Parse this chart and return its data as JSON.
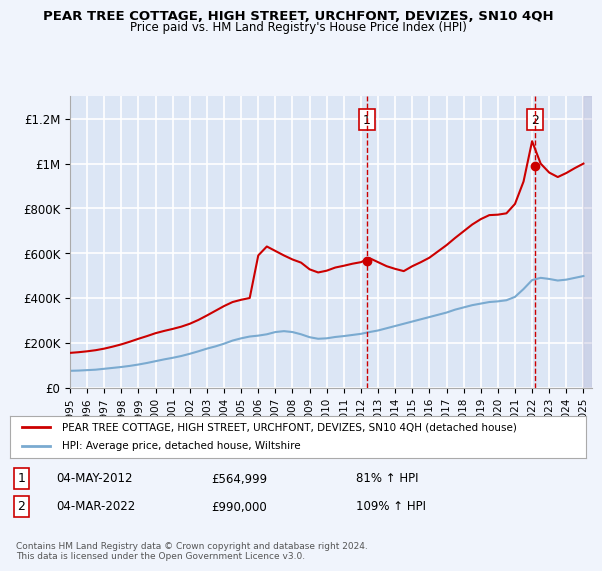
{
  "title": "PEAR TREE COTTAGE, HIGH STREET, URCHFONT, DEVIZES, SN10 4QH",
  "subtitle": "Price paid vs. HM Land Registry's House Price Index (HPI)",
  "bg_color": "#e8eef8",
  "plot_bg_color": "#dce6f5",
  "grid_color": "#ffffff",
  "hpi_color": "#7aaad0",
  "house_color": "#cc0000",
  "marker_color": "#cc0000",
  "dashed_color": "#cc0000",
  "ylim": [
    0,
    1300000
  ],
  "yticks": [
    0,
    200000,
    400000,
    600000,
    800000,
    1000000,
    1200000
  ],
  "ytick_labels": [
    "£0",
    "£200K",
    "£400K",
    "£600K",
    "£800K",
    "£1M",
    "£1.2M"
  ],
  "legend_house_label": "PEAR TREE COTTAGE, HIGH STREET, URCHFONT, DEVIZES, SN10 4QH (detached house)",
  "legend_hpi_label": "HPI: Average price, detached house, Wiltshire",
  "transaction1_date": "04-MAY-2012",
  "transaction1_price": "£564,999",
  "transaction1_hpi": "81% ↑ HPI",
  "transaction1_x": 2012.35,
  "transaction1_y": 564999,
  "transaction2_date": "04-MAR-2022",
  "transaction2_price": "£990,000",
  "transaction2_hpi": "109% ↑ HPI",
  "transaction2_x": 2022.17,
  "transaction2_y": 990000,
  "footer": "Contains HM Land Registry data © Crown copyright and database right 2024.\nThis data is licensed under the Open Government Licence v3.0.",
  "xmin": 1995,
  "xmax": 2025.5,
  "hpi_years": [
    1995,
    1995.5,
    1996,
    1996.5,
    1997,
    1997.5,
    1998,
    1998.5,
    1999,
    1999.5,
    2000,
    2000.5,
    2001,
    2001.5,
    2002,
    2002.5,
    2003,
    2003.5,
    2004,
    2004.5,
    2005,
    2005.5,
    2006,
    2006.5,
    2007,
    2007.5,
    2008,
    2008.5,
    2009,
    2009.5,
    2010,
    2010.5,
    2011,
    2011.5,
    2012,
    2012.5,
    2013,
    2013.5,
    2014,
    2014.5,
    2015,
    2015.5,
    2016,
    2016.5,
    2017,
    2017.5,
    2018,
    2018.5,
    2019,
    2019.5,
    2020,
    2020.5,
    2021,
    2021.5,
    2022,
    2022.5,
    2023,
    2023.5,
    2024,
    2024.5,
    2025
  ],
  "hpi_values": [
    75000,
    76000,
    78000,
    80000,
    84000,
    88000,
    92000,
    97000,
    103000,
    110000,
    118000,
    126000,
    133000,
    141000,
    151000,
    162000,
    174000,
    184000,
    196000,
    210000,
    220000,
    228000,
    232000,
    238000,
    248000,
    252000,
    248000,
    238000,
    225000,
    218000,
    220000,
    226000,
    230000,
    235000,
    240000,
    248000,
    255000,
    265000,
    275000,
    285000,
    295000,
    305000,
    315000,
    325000,
    335000,
    348000,
    358000,
    368000,
    375000,
    382000,
    385000,
    390000,
    405000,
    440000,
    480000,
    490000,
    485000,
    478000,
    482000,
    490000,
    498000
  ],
  "house_years": [
    1995,
    1995.5,
    1996,
    1996.5,
    1997,
    1997.5,
    1998,
    1998.5,
    1999,
    1999.5,
    2000,
    2000.5,
    2001,
    2001.5,
    2002,
    2002.5,
    2003,
    2003.5,
    2004,
    2004.5,
    2005,
    2005.5,
    2006,
    2006.5,
    2007,
    2007.5,
    2008,
    2008.5,
    2009,
    2009.5,
    2010,
    2010.5,
    2011,
    2011.5,
    2012,
    2012.5,
    2013,
    2013.5,
    2014,
    2014.5,
    2015,
    2015.5,
    2016,
    2016.5,
    2017,
    2017.5,
    2018,
    2018.5,
    2019,
    2019.5,
    2020,
    2020.5,
    2021,
    2021.5,
    2022,
    2022.5,
    2023,
    2023.5,
    2024,
    2024.5,
    2025
  ],
  "house_values": [
    155000,
    158000,
    162000,
    167000,
    174000,
    183000,
    193000,
    205000,
    218000,
    230000,
    243000,
    253000,
    262000,
    272000,
    285000,
    302000,
    322000,
    343000,
    364000,
    382000,
    392000,
    400000,
    590000,
    630000,
    610000,
    590000,
    572000,
    558000,
    528000,
    514000,
    522000,
    536000,
    544000,
    553000,
    560000,
    578000,
    560000,
    542000,
    530000,
    520000,
    542000,
    560000,
    580000,
    608000,
    636000,
    668000,
    698000,
    728000,
    752000,
    770000,
    772000,
    778000,
    820000,
    920000,
    1100000,
    1000000,
    960000,
    940000,
    958000,
    980000,
    1000000
  ]
}
